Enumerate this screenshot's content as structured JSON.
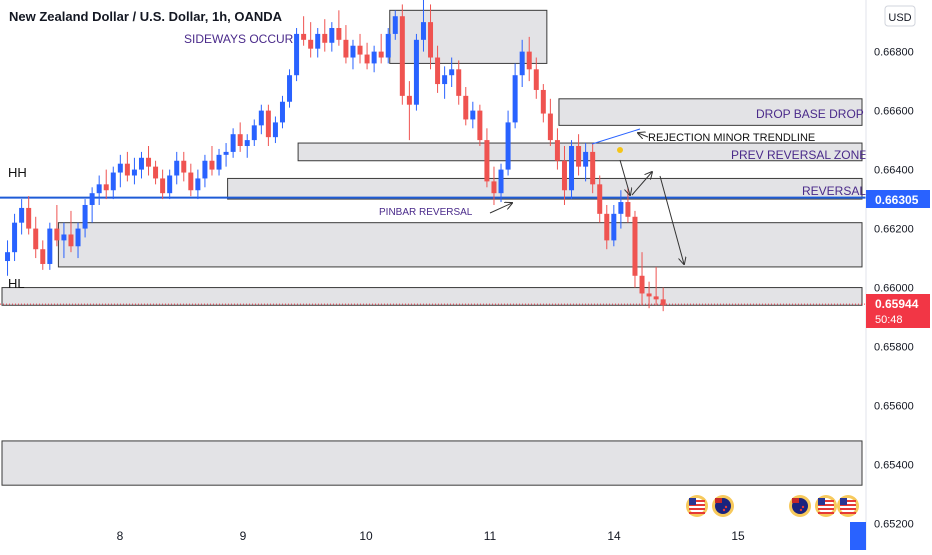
{
  "header": {
    "title": "New Zealand Dollar / U.S. Dollar, 1h, OANDA",
    "currency": "USD"
  },
  "colors": {
    "up": "#2962ff",
    "down": "#ef5350",
    "zone_fill": "#d9d9de",
    "zone_stroke": "#3a3a3a",
    "annotation_purple": "#4a2a8a",
    "horizontal_line": "#1e5bd6",
    "current_price_bg": "#f23645"
  },
  "chart_data": {
    "type": "candlestick",
    "title": "New Zealand Dollar / U.S. Dollar, 1h, OANDA",
    "ylim": [
      0.6518,
      0.6692
    ],
    "y_ticks": [
      0.668,
      0.666,
      0.664,
      0.662,
      0.66,
      0.658,
      0.656,
      0.654,
      0.652
    ],
    "y_tick_labels": [
      "0.66800",
      "0.66600",
      "0.66400",
      "0.66200",
      "0.66000",
      "0.65800",
      "0.65600",
      "0.65400",
      "0.65200"
    ],
    "x_ticks": [
      "8",
      "9",
      "10",
      "11",
      "14",
      "15"
    ],
    "key_level": {
      "price": 0.66305,
      "label": "0.66305"
    },
    "current_price": {
      "price": 0.65944,
      "label": "0.65944",
      "countdown": "50:48"
    },
    "zones": [
      {
        "name": "sideways",
        "bar_start": 55,
        "bar_end": 77,
        "top": 0.6694,
        "bottom": 0.6676
      },
      {
        "name": "drop-base-drop",
        "bar_start": 79,
        "bar_end": 170,
        "top": 0.6664,
        "bottom": 0.6655
      },
      {
        "name": "prev-reversal",
        "bar_start": 42,
        "bar_end": 170,
        "top": 0.6649,
        "bottom": 0.6643
      },
      {
        "name": "reversal",
        "bar_start": 32,
        "bar_end": 170,
        "top": 0.6637,
        "bottom": 0.663
      },
      {
        "name": "demand-1",
        "bar_start": 8,
        "bar_end": 170,
        "top": 0.6622,
        "bottom": 0.6607
      },
      {
        "name": "demand-2",
        "bar_start": 0,
        "bar_end": 170,
        "top": 0.66,
        "bottom": 0.6594
      },
      {
        "name": "demand-3",
        "bar_start": 0,
        "bar_end": 170,
        "top": 0.6548,
        "bottom": 0.6533
      }
    ],
    "annotations": {
      "sideways": "SIDEWAYS OCCUR",
      "drop_base_drop": "DROP BASE DROP A",
      "rejection": "REJECTION MINOR TRENDLINE",
      "prev_reversal_zone": "PREV REVERSAL ZONE",
      "reversal": "REVERSAL",
      "pinbar": "PINBAR REVERSAL",
      "hh": "HH",
      "hl": "HL"
    },
    "candles": [
      [
        0.6609,
        0.6616,
        0.6604,
        0.6612
      ],
      [
        0.6612,
        0.6625,
        0.6609,
        0.6622
      ],
      [
        0.6622,
        0.663,
        0.6618,
        0.6627
      ],
      [
        0.6627,
        0.6631,
        0.6618,
        0.662
      ],
      [
        0.662,
        0.6624,
        0.661,
        0.6613
      ],
      [
        0.6613,
        0.6616,
        0.6606,
        0.6608
      ],
      [
        0.6608,
        0.6622,
        0.6606,
        0.662
      ],
      [
        0.662,
        0.6628,
        0.6614,
        0.6616
      ],
      [
        0.6616,
        0.6622,
        0.661,
        0.6618
      ],
      [
        0.6618,
        0.6626,
        0.6612,
        0.6614
      ],
      [
        0.6614,
        0.6622,
        0.661,
        0.662
      ],
      [
        0.662,
        0.663,
        0.6617,
        0.6628
      ],
      [
        0.6628,
        0.6634,
        0.6622,
        0.6632
      ],
      [
        0.6632,
        0.6638,
        0.6628,
        0.6635
      ],
      [
        0.6635,
        0.664,
        0.663,
        0.6633
      ],
      [
        0.6633,
        0.6641,
        0.663,
        0.6639
      ],
      [
        0.6639,
        0.6645,
        0.6634,
        0.6642
      ],
      [
        0.6642,
        0.6646,
        0.6636,
        0.6638
      ],
      [
        0.6638,
        0.6644,
        0.6635,
        0.664
      ],
      [
        0.664,
        0.6646,
        0.6637,
        0.6644
      ],
      [
        0.6644,
        0.6648,
        0.6638,
        0.6641
      ],
      [
        0.6641,
        0.6643,
        0.6635,
        0.6637
      ],
      [
        0.6637,
        0.664,
        0.663,
        0.6632
      ],
      [
        0.6632,
        0.664,
        0.663,
        0.6638
      ],
      [
        0.6638,
        0.6646,
        0.6635,
        0.6643
      ],
      [
        0.6643,
        0.6646,
        0.6636,
        0.6639
      ],
      [
        0.6639,
        0.6642,
        0.6631,
        0.6633
      ],
      [
        0.6633,
        0.664,
        0.663,
        0.6637
      ],
      [
        0.6637,
        0.6645,
        0.6634,
        0.6643
      ],
      [
        0.6643,
        0.6648,
        0.6638,
        0.664
      ],
      [
        0.664,
        0.6647,
        0.6638,
        0.6645
      ],
      [
        0.6645,
        0.6649,
        0.6641,
        0.6646
      ],
      [
        0.6646,
        0.6654,
        0.6644,
        0.6652
      ],
      [
        0.6652,
        0.6656,
        0.6646,
        0.6648
      ],
      [
        0.6648,
        0.6652,
        0.6644,
        0.665
      ],
      [
        0.665,
        0.6657,
        0.6648,
        0.6655
      ],
      [
        0.6655,
        0.6662,
        0.6652,
        0.666
      ],
      [
        0.666,
        0.6662,
        0.6648,
        0.6651
      ],
      [
        0.6651,
        0.6658,
        0.6649,
        0.6656
      ],
      [
        0.6656,
        0.6665,
        0.6654,
        0.6663
      ],
      [
        0.6663,
        0.6674,
        0.6661,
        0.6672
      ],
      [
        0.6672,
        0.6688,
        0.667,
        0.6686
      ],
      [
        0.6686,
        0.6692,
        0.6682,
        0.6684
      ],
      [
        0.6684,
        0.669,
        0.6678,
        0.6681
      ],
      [
        0.6681,
        0.6688,
        0.6678,
        0.6686
      ],
      [
        0.6686,
        0.6691,
        0.668,
        0.6683
      ],
      [
        0.6683,
        0.669,
        0.668,
        0.6688
      ],
      [
        0.6688,
        0.6694,
        0.6682,
        0.6684
      ],
      [
        0.6684,
        0.6689,
        0.6676,
        0.6678
      ],
      [
        0.6678,
        0.6684,
        0.6674,
        0.6682
      ],
      [
        0.6682,
        0.6686,
        0.6676,
        0.6679
      ],
      [
        0.6679,
        0.6683,
        0.6674,
        0.6676
      ],
      [
        0.6676,
        0.6682,
        0.6673,
        0.668
      ],
      [
        0.668,
        0.6686,
        0.6676,
        0.6678
      ],
      [
        0.6678,
        0.6688,
        0.6676,
        0.6686
      ],
      [
        0.6686,
        0.6694,
        0.6684,
        0.6692
      ],
      [
        0.6692,
        0.6696,
        0.6662,
        0.6665
      ],
      [
        0.6665,
        0.667,
        0.665,
        0.6662
      ],
      [
        0.6662,
        0.6686,
        0.666,
        0.6684
      ],
      [
        0.6684,
        0.6698,
        0.668,
        0.669
      ],
      [
        0.669,
        0.6696,
        0.6674,
        0.6678
      ],
      [
        0.6678,
        0.6682,
        0.6666,
        0.6669
      ],
      [
        0.6669,
        0.6675,
        0.6664,
        0.6672
      ],
      [
        0.6672,
        0.6678,
        0.6668,
        0.6674
      ],
      [
        0.6674,
        0.6677,
        0.6662,
        0.6665
      ],
      [
        0.6665,
        0.6668,
        0.6655,
        0.6657
      ],
      [
        0.6657,
        0.6663,
        0.6654,
        0.666
      ],
      [
        0.666,
        0.6662,
        0.6648,
        0.665
      ],
      [
        0.665,
        0.6654,
        0.6634,
        0.6636
      ],
      [
        0.6636,
        0.6641,
        0.6628,
        0.6632
      ],
      [
        0.6632,
        0.6642,
        0.6629,
        0.664
      ],
      [
        0.664,
        0.666,
        0.6638,
        0.6656
      ],
      [
        0.6656,
        0.6676,
        0.6654,
        0.6672
      ],
      [
        0.6672,
        0.6684,
        0.6668,
        0.668
      ],
      [
        0.668,
        0.6685,
        0.667,
        0.6674
      ],
      [
        0.6674,
        0.6678,
        0.6664,
        0.6667
      ],
      [
        0.6667,
        0.6669,
        0.6656,
        0.6659
      ],
      [
        0.6659,
        0.6664,
        0.6648,
        0.665
      ],
      [
        0.665,
        0.6654,
        0.664,
        0.6643
      ],
      [
        0.6643,
        0.6648,
        0.6628,
        0.6633
      ],
      [
        0.6633,
        0.665,
        0.663,
        0.6648
      ],
      [
        0.6648,
        0.6652,
        0.6638,
        0.6641
      ],
      [
        0.6641,
        0.6649,
        0.6636,
        0.6646
      ],
      [
        0.6646,
        0.6649,
        0.6632,
        0.6635
      ],
      [
        0.6635,
        0.6638,
        0.6622,
        0.6625
      ],
      [
        0.6625,
        0.6628,
        0.6613,
        0.6616
      ],
      [
        0.6616,
        0.6628,
        0.6614,
        0.6625
      ],
      [
        0.6625,
        0.6633,
        0.662,
        0.6629
      ],
      [
        0.6629,
        0.6634,
        0.6622,
        0.6624
      ],
      [
        0.6624,
        0.6626,
        0.66,
        0.6604
      ],
      [
        0.6604,
        0.6612,
        0.6594,
        0.6598
      ],
      [
        0.6598,
        0.6602,
        0.6593,
        0.6597
      ],
      [
        0.6597,
        0.6607,
        0.6594,
        0.6596
      ],
      [
        0.6596,
        0.66,
        0.6592,
        0.6594
      ]
    ]
  },
  "badges": [
    "us-flag",
    "nz-flag",
    "nz-flag",
    "us-flag",
    "us-flag"
  ]
}
